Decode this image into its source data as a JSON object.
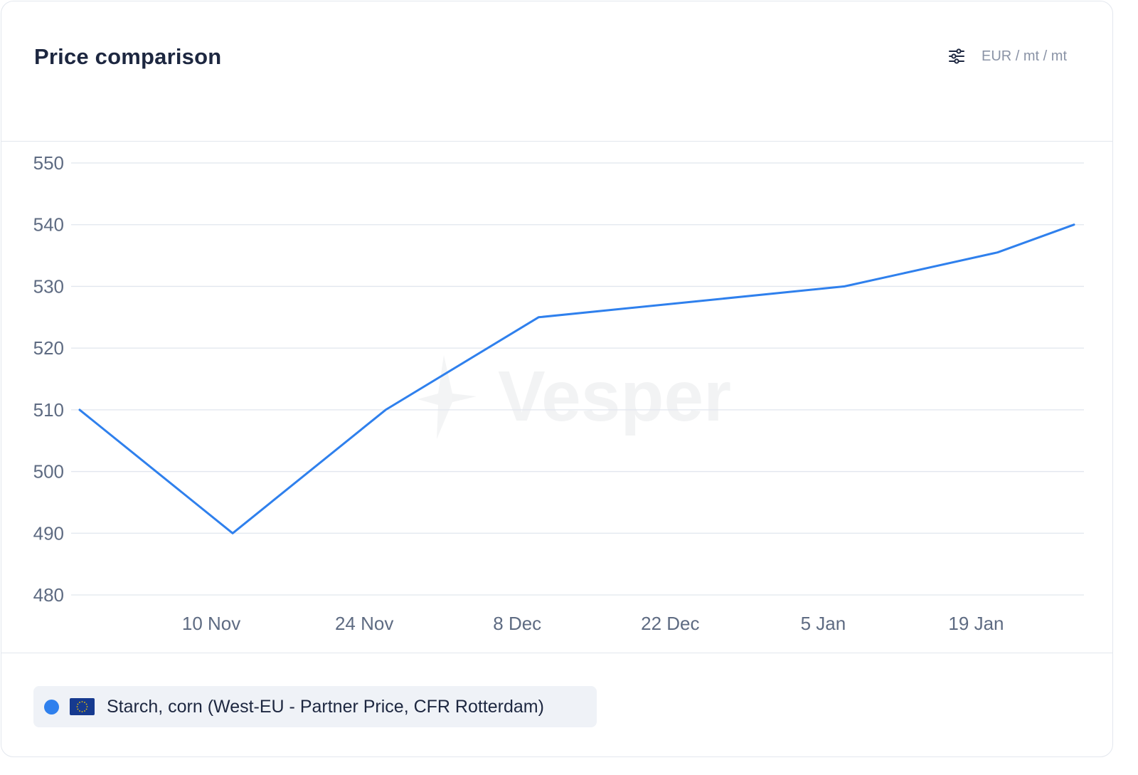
{
  "header": {
    "title": "Price comparison",
    "settings_icon": "sliders-icon",
    "unit_label": "EUR / mt / mt"
  },
  "watermark": {
    "text": "Vesper"
  },
  "legend": {
    "items": [
      {
        "label": "Starch, corn (West-EU - Partner Price, CFR Rotterdam)",
        "color": "#2f80ed",
        "flag_icon": "eu-flag-icon"
      }
    ]
  },
  "chart_data": {
    "type": "line",
    "x": [
      "2023-10-27",
      "2023-11-10",
      "2023-11-24",
      "2023-12-08",
      "2023-12-22",
      "2024-01-05",
      "2024-01-19",
      "2024-01-26"
    ],
    "series": [
      {
        "values": [
          510,
          490,
          510,
          525,
          527.5,
          530,
          535.5,
          540
        ],
        "color": "#2f80ed"
      }
    ],
    "x_tick_labels": [
      "10 Nov",
      "24 Nov",
      "8 Dec",
      "22 Dec",
      "5 Jan",
      "19 Jan"
    ],
    "y_ticks": [
      480,
      490,
      500,
      510,
      520,
      530,
      540,
      550
    ],
    "ylim": [
      480,
      550
    ],
    "grid": true,
    "legend_position": "bottom-left"
  }
}
